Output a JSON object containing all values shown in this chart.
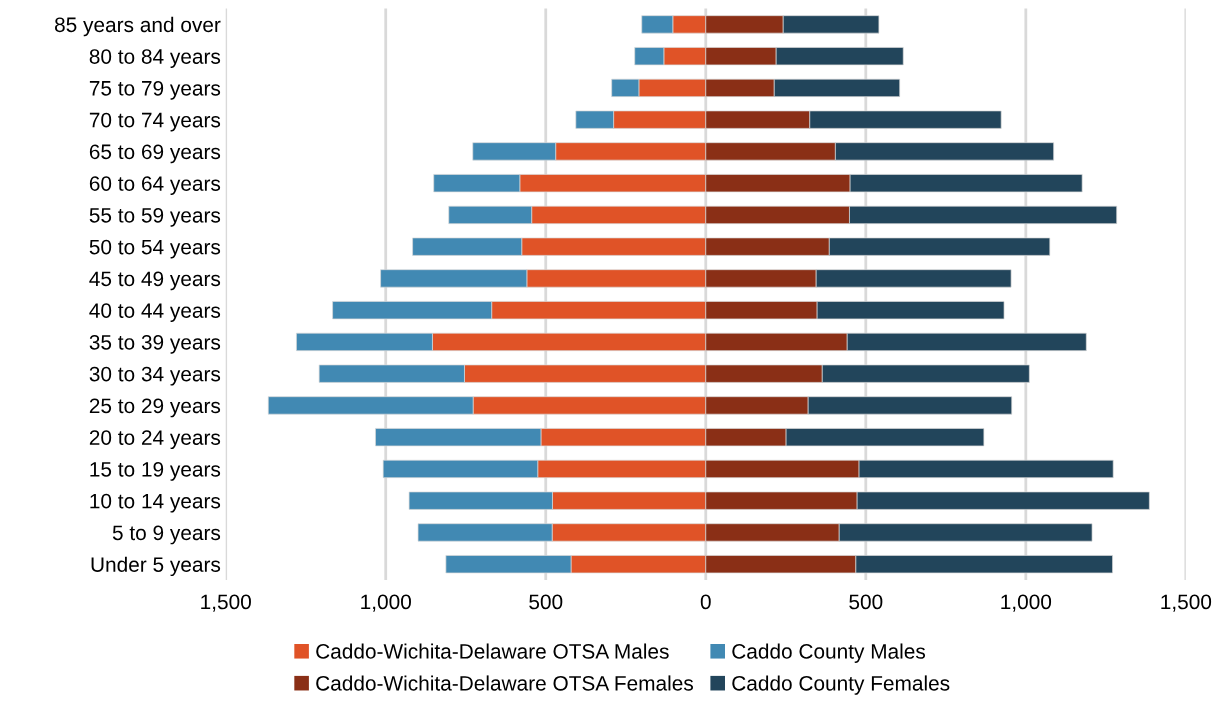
{
  "chart_data": {
    "type": "bar",
    "orientation": "horizontal",
    "stacked": true,
    "categories": [
      "85 years and over",
      "80 to 84 years",
      "75 to 79 years",
      "70 to 74 years",
      "65 to 69 years",
      "60 to 64 years",
      "55 to 59 years",
      "50 to 54 years",
      "45 to 49 years",
      "40 to 44 years",
      "35 to 39 years",
      "30 to 34 years",
      "25 to 29 years",
      "20 to 24 years",
      "15 to 19 years",
      "10 to 14 years",
      "5 to 9 years",
      "Under 5 years"
    ],
    "series": [
      {
        "name": "Caddo-Wichita-Delaware OTSA Males",
        "color": "#e05327",
        "values": [
          -103,
          -131,
          -209,
          -288,
          -469,
          -581,
          -544,
          -575,
          -559,
          -669,
          -854,
          -754,
          -727,
          -515,
          -525,
          -479,
          -480,
          -421
        ]
      },
      {
        "name": "Caddo County Males",
        "color": "#4189b3",
        "values": [
          -97,
          -91,
          -85,
          -118,
          -259,
          -269,
          -259,
          -341,
          -457,
          -497,
          -425,
          -454,
          -640,
          -517,
          -483,
          -448,
          -419,
          -391
        ]
      },
      {
        "name": "Caddo-Wichita-Delaware OTSA Females",
        "color": "#8a2f16",
        "values": [
          242,
          220,
          214,
          325,
          405,
          451,
          449,
          386,
          345,
          348,
          442,
          364,
          320,
          251,
          479,
          473,
          417,
          469
        ]
      },
      {
        "name": "Caddo County Females",
        "color": "#22455b",
        "values": [
          299,
          397,
          392,
          598,
          682,
          725,
          835,
          689,
          609,
          584,
          747,
          647,
          636,
          618,
          794,
          913,
          790,
          802
        ]
      }
    ],
    "xlim": [
      -1500,
      1500
    ],
    "xticks": [
      {
        "value": -1500,
        "label": "1,500"
      },
      {
        "value": -1000,
        "label": "1,000"
      },
      {
        "value": -500,
        "label": "500"
      },
      0,
      500,
      {
        "value": 1000,
        "label": "1,000"
      },
      {
        "value": 1500,
        "label": "1,500"
      }
    ],
    "grid": "x",
    "legend": "bottom"
  }
}
